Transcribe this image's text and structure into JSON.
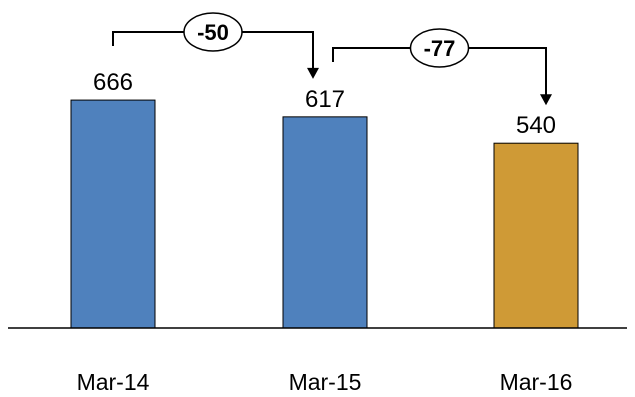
{
  "chart_data": {
    "type": "bar",
    "title": "",
    "xlabel": "",
    "ylabel": "",
    "categories": [
      "Mar-14",
      "Mar-15",
      "Mar-16"
    ],
    "values": [
      666,
      617,
      540
    ],
    "ylim": [
      0,
      900
    ],
    "grid": false,
    "legend": "none",
    "bar_colors": [
      "#4f81bd",
      "#4f81bd",
      "#cf9a36"
    ],
    "bar_edge_color": "#000000",
    "annotations": [
      {
        "from": "Mar-14",
        "to": "Mar-15",
        "label": "-50"
      },
      {
        "from": "Mar-15",
        "to": "Mar-16",
        "label": "-77"
      }
    ]
  }
}
